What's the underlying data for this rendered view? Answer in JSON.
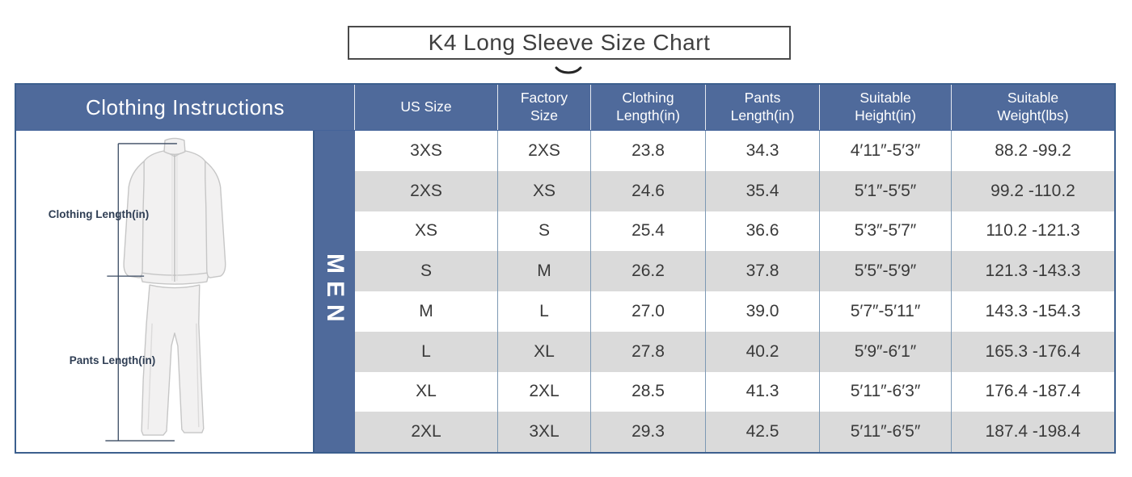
{
  "title": "K4 Long Sleeve Size Chart",
  "clothing_instructions": {
    "header": "Clothing Instructions",
    "gender": "MEN",
    "clothing_length_label": "Clothing Length(in)",
    "pants_length_label": "Pants Length(in)"
  },
  "chart_data": {
    "type": "table",
    "title": "K4 Long Sleeve Size Chart",
    "columns": [
      "US Size",
      "Factory\nSize",
      "Clothing\nLength(in)",
      "Pants\nLength(in)",
      "Suitable\nHeight(in)",
      "Suitable\nWeight(lbs)"
    ],
    "rows": [
      [
        "3XS",
        "2XS",
        "23.8",
        "34.3",
        "4′11″-5′3″",
        "88.2 -99.2"
      ],
      [
        "2XS",
        "XS",
        "24.6",
        "35.4",
        "5′1″-5′5″",
        "99.2 -110.2"
      ],
      [
        "XS",
        "S",
        "25.4",
        "36.6",
        "5′3″-5′7″",
        "110.2 -121.3"
      ],
      [
        "S",
        "M",
        "26.2",
        "37.8",
        "5′5″-5′9″",
        "121.3 -143.3"
      ],
      [
        "M",
        "L",
        "27.0",
        "39.0",
        "5′7″-5′11″",
        "143.3 -154.3"
      ],
      [
        "L",
        "XL",
        "27.8",
        "40.2",
        "5′9″-6′1″",
        "165.3 -176.4"
      ],
      [
        "XL",
        "2XL",
        "28.5",
        "41.3",
        "5′11″-6′3″",
        "176.4 -187.4"
      ],
      [
        "2XL",
        "3XL",
        "29.3",
        "42.5",
        "5′11″-6′5″",
        "187.4 -198.4"
      ]
    ]
  },
  "colors": {
    "header_blue": "#4f6a9b",
    "row_alt_gray": "#dadada",
    "column_divider": "#7d99b4",
    "outer_border": "#3c5f8e",
    "title_color": "#3f3f3f",
    "measure_line": "#3a4a62"
  }
}
